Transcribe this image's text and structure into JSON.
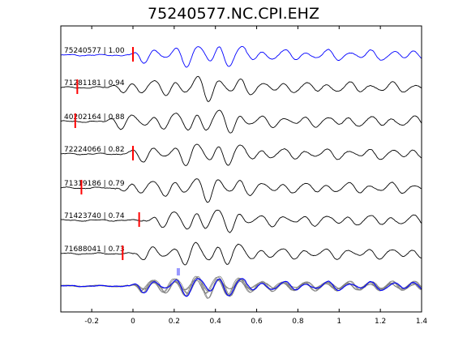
{
  "page": {
    "title": "75240577.NC.CPI.EHZ"
  },
  "colors": {
    "reference_trace": "#0000ff",
    "other_traces": "#000000",
    "stack_traces": "#808080",
    "pick_marker": "#ff0000",
    "axis": "#000000"
  },
  "chart_data": {
    "type": "line",
    "title": "75240577.NC.CPI.EHZ",
    "xlabel": "",
    "ylabel": "",
    "xlim": [
      -0.35,
      1.4
    ],
    "xticks": [
      -0.2,
      0,
      0.2,
      0.4,
      0.6,
      0.8,
      1,
      1.2,
      1.4
    ],
    "xtick_labels": [
      "-0.2",
      "0",
      "0.2",
      "0.4",
      "0.6",
      "0.8",
      "1",
      "1.2",
      "1.4"
    ],
    "grid": false,
    "legend": "none",
    "series": [
      {
        "name": "75240577 | 1.00",
        "pick_time": 0.0,
        "reference": true
      },
      {
        "name": "71281181 | 0.94",
        "pick_time": -0.27
      },
      {
        "name": "40202164 | 0.88",
        "pick_time": -0.28
      },
      {
        "name": "72224066 | 0.82",
        "pick_time": 0.0
      },
      {
        "name": "71319186 | 0.79",
        "pick_time": -0.25
      },
      {
        "name": "71423740 | 0.74",
        "pick_time": 0.03
      },
      {
        "name": "71688041 | 0.73",
        "pick_time": -0.05
      }
    ],
    "stack": {
      "description": "overlay of all traces",
      "pick_time": 0.22
    }
  }
}
